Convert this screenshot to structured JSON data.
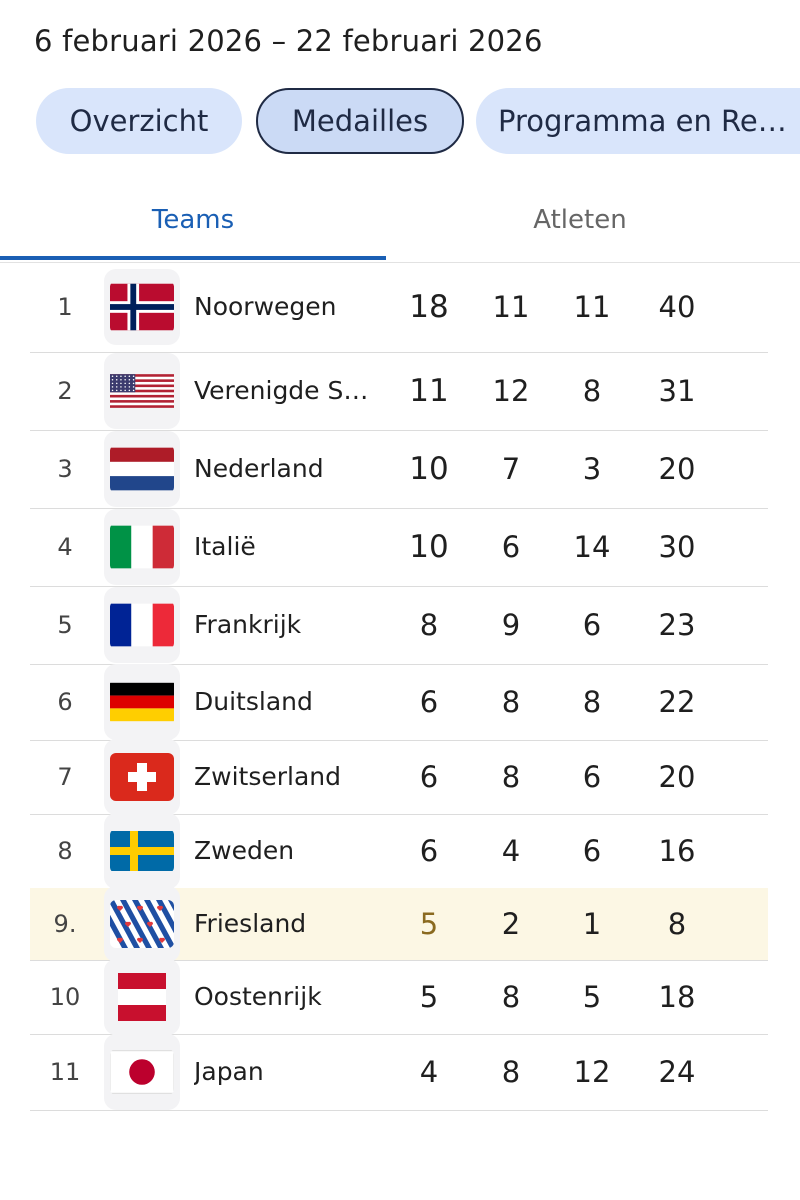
{
  "header": {
    "date_range": "6 februari 2026 – 22 februari 2026"
  },
  "chips": [
    {
      "label": "Overzicht"
    },
    {
      "label": "Medailles"
    },
    {
      "label": "Programma en Re…"
    }
  ],
  "tabs": [
    {
      "label": "Teams"
    },
    {
      "label": "Atleten"
    }
  ],
  "rows": [
    {
      "rank": "1",
      "country": "Noorwegen",
      "flag": "norway-flag",
      "gold": "18",
      "silver": "11",
      "bronze": "11",
      "total": "40"
    },
    {
      "rank": "2",
      "country": "Verenigde S…",
      "flag": "usa-flag",
      "gold": "11",
      "silver": "12",
      "bronze": "8",
      "total": "31"
    },
    {
      "rank": "3",
      "country": "Nederland",
      "flag": "netherlands-flag",
      "gold": "10",
      "silver": "7",
      "bronze": "3",
      "total": "20"
    },
    {
      "rank": "4",
      "country": "Italië",
      "flag": "italy-flag",
      "gold": "10",
      "silver": "6",
      "bronze": "14",
      "total": "30"
    },
    {
      "rank": "5",
      "country": "Frankrijk",
      "flag": "france-flag",
      "gold": "8",
      "silver": "9",
      "bronze": "6",
      "total": "23"
    },
    {
      "rank": "6",
      "country": "Duitsland",
      "flag": "germany-flag",
      "gold": "6",
      "silver": "8",
      "bronze": "8",
      "total": "22"
    },
    {
      "rank": "7",
      "country": "Zwitserland",
      "flag": "switzerland-flag",
      "gold": "6",
      "silver": "8",
      "bronze": "6",
      "total": "20"
    },
    {
      "rank": "8",
      "country": "Zweden",
      "flag": "sweden-flag",
      "gold": "6",
      "silver": "4",
      "bronze": "6",
      "total": "16"
    },
    {
      "rank": "9.",
      "country": "Friesland",
      "flag": "friesland-flag",
      "gold": "5",
      "silver": "2",
      "bronze": "1",
      "total": "8"
    },
    {
      "rank": "10",
      "country": "Oostenrijk",
      "flag": "austria-flag",
      "gold": "5",
      "silver": "8",
      "bronze": "5",
      "total": "18"
    },
    {
      "rank": "11",
      "country": "Japan",
      "flag": "japan-flag",
      "gold": "4",
      "silver": "8",
      "bronze": "12",
      "total": "24"
    }
  ],
  "colors": {
    "accent": "#1a5fb4",
    "chip_bg": "#d9e5fb",
    "highlight_row": "#fcf7e4"
  }
}
